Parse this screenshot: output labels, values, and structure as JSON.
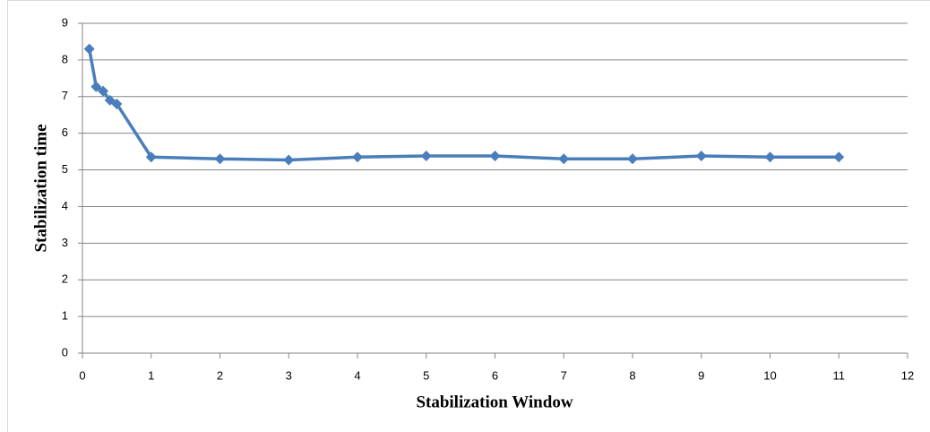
{
  "chart_data": {
    "type": "line",
    "x_label": "Stabilization Window",
    "y_label": "Stabilization time",
    "x": [
      0.1,
      0.2,
      0.3,
      0.4,
      0.5,
      1,
      2,
      3,
      4,
      5,
      6,
      7,
      8,
      9,
      10,
      11
    ],
    "values": [
      8.3,
      7.27,
      7.15,
      6.9,
      6.8,
      5.35,
      5.3,
      5.27,
      5.35,
      5.38,
      5.38,
      5.3,
      5.3,
      5.38,
      5.35,
      5.35
    ],
    "color": "#4a7ebb",
    "xlim": [
      0,
      12
    ],
    "xticks": [
      0,
      1,
      2,
      3,
      4,
      5,
      6,
      7,
      8,
      9,
      10,
      11,
      12
    ],
    "ylim": [
      0,
      9
    ],
    "yticks": [
      0,
      1,
      2,
      3,
      4,
      5,
      6,
      7,
      8,
      9
    ],
    "grid": true
  }
}
